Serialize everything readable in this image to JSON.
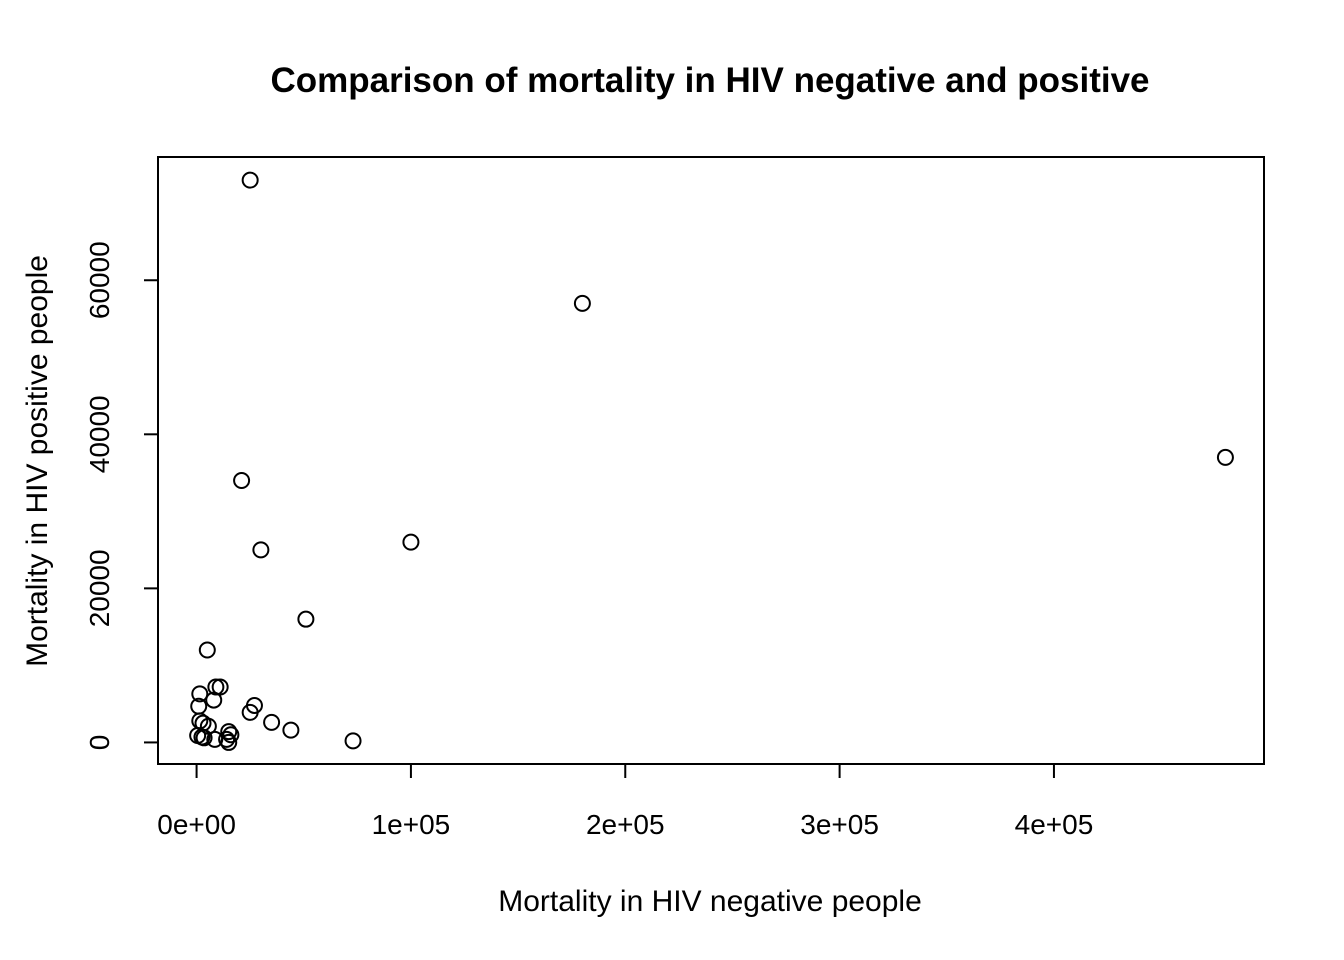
{
  "chart_data": {
    "type": "scatter",
    "title": "Comparison of mortality in HIV negative and positive",
    "xlabel": "Mortality in HIV negative people",
    "ylabel": "Mortality in HIV positive people",
    "xlim": [
      -18000,
      498000
    ],
    "ylim": [
      -2800,
      76000
    ],
    "x_ticks": [
      0,
      100000,
      200000,
      300000,
      400000
    ],
    "x_tick_labels": [
      "0e+00",
      "1e+05",
      "2e+05",
      "3e+05",
      "4e+05"
    ],
    "y_ticks": [
      0,
      20000,
      40000,
      60000
    ],
    "y_tick_labels": [
      "0",
      "20000",
      "40000",
      "60000"
    ],
    "grid": false,
    "marker": "open-circle",
    "colors": {
      "points": "#000000",
      "axes": "#000000",
      "background": "#ffffff"
    },
    "points": [
      {
        "x": 25000,
        "y": 73000
      },
      {
        "x": 180000,
        "y": 57000
      },
      {
        "x": 480000,
        "y": 37000
      },
      {
        "x": 21000,
        "y": 34000
      },
      {
        "x": 100000,
        "y": 26000
      },
      {
        "x": 30000,
        "y": 25000
      },
      {
        "x": 51000,
        "y": 16000
      },
      {
        "x": 5000,
        "y": 12000
      },
      {
        "x": 9000,
        "y": 7200
      },
      {
        "x": 11000,
        "y": 7200
      },
      {
        "x": 1500,
        "y": 6300
      },
      {
        "x": 8000,
        "y": 5500
      },
      {
        "x": 27000,
        "y": 4800
      },
      {
        "x": 1000,
        "y": 4700
      },
      {
        "x": 25000,
        "y": 3900
      },
      {
        "x": 1500,
        "y": 2800
      },
      {
        "x": 3000,
        "y": 2500
      },
      {
        "x": 35000,
        "y": 2600
      },
      {
        "x": 5500,
        "y": 2100
      },
      {
        "x": 44000,
        "y": 1600
      },
      {
        "x": 15000,
        "y": 1400
      },
      {
        "x": 16000,
        "y": 1000
      },
      {
        "x": 500,
        "y": 900
      },
      {
        "x": 2500,
        "y": 700
      },
      {
        "x": 3500,
        "y": 600
      },
      {
        "x": 8500,
        "y": 400
      },
      {
        "x": 14000,
        "y": 400
      },
      {
        "x": 15000,
        "y": 0
      },
      {
        "x": 73000,
        "y": 200
      }
    ]
  }
}
